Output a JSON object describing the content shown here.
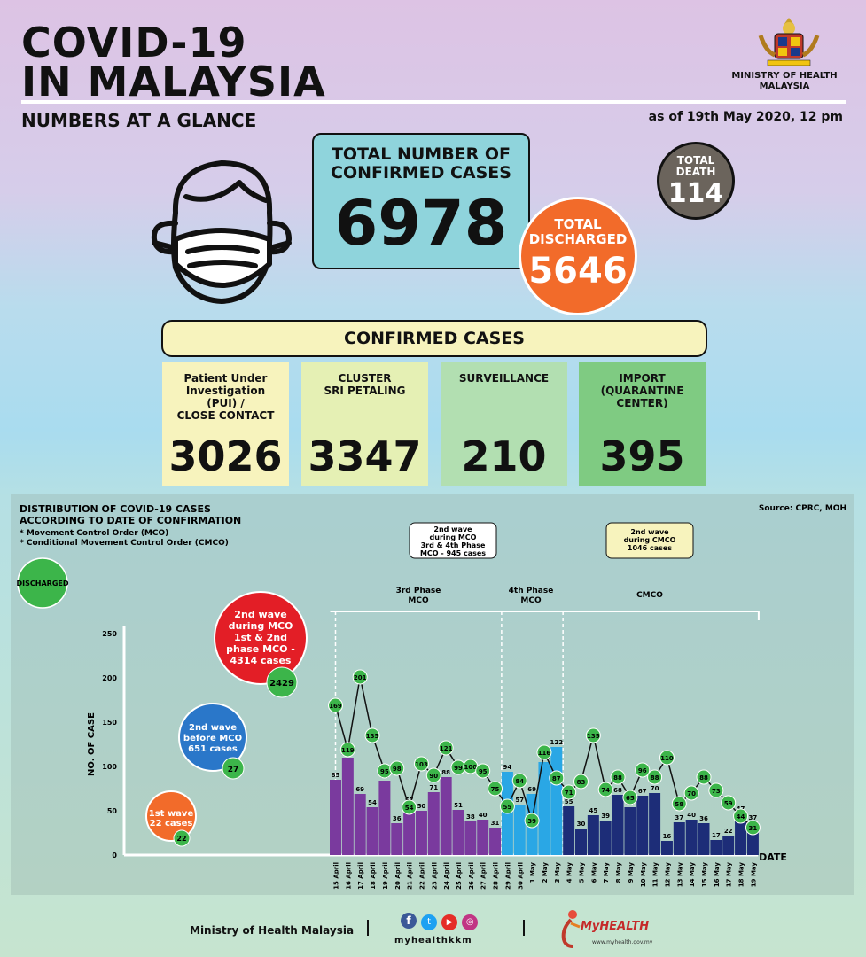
{
  "header": {
    "title_line1": "COVID-19",
    "title_line2": "IN MALAYSIA",
    "subtitle": "NUMBERS AT A GLANCE",
    "as_of": "as of 19th May 2020, 12 pm",
    "ministry_line1": "MINISTRY OF HEALTH",
    "ministry_line2": "MALAYSIA"
  },
  "totals": {
    "confirmed_label_1": "TOTAL NUMBER OF",
    "confirmed_label_2": "CONFIRMED CASES",
    "confirmed_value": "6978",
    "death_label_1": "TOTAL",
    "death_label_2": "DEATH",
    "death_value": "114",
    "discharged_label_1": "TOTAL",
    "discharged_label_2": "DISCHARGED",
    "discharged_value": "5646"
  },
  "confirmed_section": {
    "title": "CONFIRMED CASES",
    "cards": [
      {
        "label_lines": [
          "Patient Under",
          "Investigation",
          "(PUI) /",
          "CLOSE CONTACT"
        ],
        "value": "3026",
        "color": "#f7f3bd"
      },
      {
        "label_lines": [
          "CLUSTER",
          "SRI PETALING"
        ],
        "value": "3347",
        "color": "#e5f0b4"
      },
      {
        "label_lines": [
          "SURVEILLANCE"
        ],
        "value": "210",
        "color": "#b2dfb1"
      },
      {
        "label_lines": [
          "IMPORT",
          "(QUARANTINE",
          "CENTER)"
        ],
        "value": "395",
        "color": "#7fcb82"
      }
    ]
  },
  "distribution": {
    "title_line1": "DISTRIBUTION OF COVID-19 CASES",
    "title_line2": "ACCORDING TO DATE OF CONFIRMATION",
    "note1": "* Movement Control Order (MCO)",
    "note2": "* Conditional Movement Control Order (CMCO)",
    "source": "Source: CPRC, MOH",
    "discharged_legend": "DISCHARGED",
    "wave1": {
      "lines": [
        "1st wave",
        "22 cases"
      ],
      "value": "22"
    },
    "wave2_before": {
      "lines": [
        "2nd wave",
        "before MCO",
        "651 cases"
      ],
      "value": "27"
    },
    "wave2_mco12": {
      "lines": [
        "2nd wave",
        "during MCO",
        "1st & 2nd",
        "phase MCO -",
        "4314 cases"
      ],
      "value": "2429"
    },
    "box_mco34": [
      "2nd wave",
      "during MCO",
      "3rd & 4th Phase",
      "MCO - 945 cases"
    ],
    "box_cmco": [
      "2nd wave",
      "during CMCO",
      "1046 cases"
    ],
    "phase3": [
      "3rd Phase",
      "MCO"
    ],
    "phase4": [
      "4th Phase",
      "MCO"
    ],
    "cmco": "CMCO"
  },
  "chart_data": {
    "type": "bar",
    "ylabel": "NO. OF CASE",
    "xlabel": "DATE",
    "ylim": [
      0,
      250
    ],
    "yticks": [
      0,
      50,
      100,
      150,
      200,
      250
    ],
    "categories": [
      "15 April",
      "16 April",
      "17 April",
      "18 April",
      "19 April",
      "20 April",
      "21 April",
      "22 April",
      "23 April",
      "24 April",
      "25 April",
      "26 April",
      "27 April",
      "28 April",
      "29 April",
      "30 April",
      "1 May",
      "2 May",
      "3 May",
      "4 May",
      "5 May",
      "6 May",
      "7 May",
      "8 May",
      "9 May",
      "10 May",
      "11 May",
      "12 May",
      "13 May",
      "14 May",
      "15 May",
      "16 May",
      "17 May",
      "18 May",
      "19 May"
    ],
    "series": [
      {
        "values": [
          85,
          110,
          69,
          54,
          84,
          36,
          57,
          50,
          71,
          88,
          51,
          38,
          40,
          31,
          94,
          57,
          69,
          105,
          122,
          55,
          30,
          45,
          39,
          68,
          54,
          67,
          70,
          16,
          37,
          40,
          36,
          17,
          22,
          47,
          37
        ]
      },
      {
        "values": [
          169,
          119,
          201,
          135,
          95,
          98,
          54,
          103,
          90,
          121,
          99,
          100,
          95,
          75,
          55,
          84,
          39,
          116,
          87,
          71,
          83,
          135,
          74,
          88,
          65,
          96,
          88,
          110,
          58,
          70,
          88,
          73,
          59,
          44,
          31
        ]
      }
    ],
    "colors": {
      "phase3": "#7a3a9e",
      "phase4": "#2aa7e5",
      "cmco": "#1d2d78",
      "discharged": "#3cb54a"
    }
  },
  "footer": {
    "ministry": "Ministry of Health Malaysia",
    "handle": "myhealthkkm",
    "brand": "MyHEALTH",
    "url": "www.myhealth.gov.my"
  }
}
